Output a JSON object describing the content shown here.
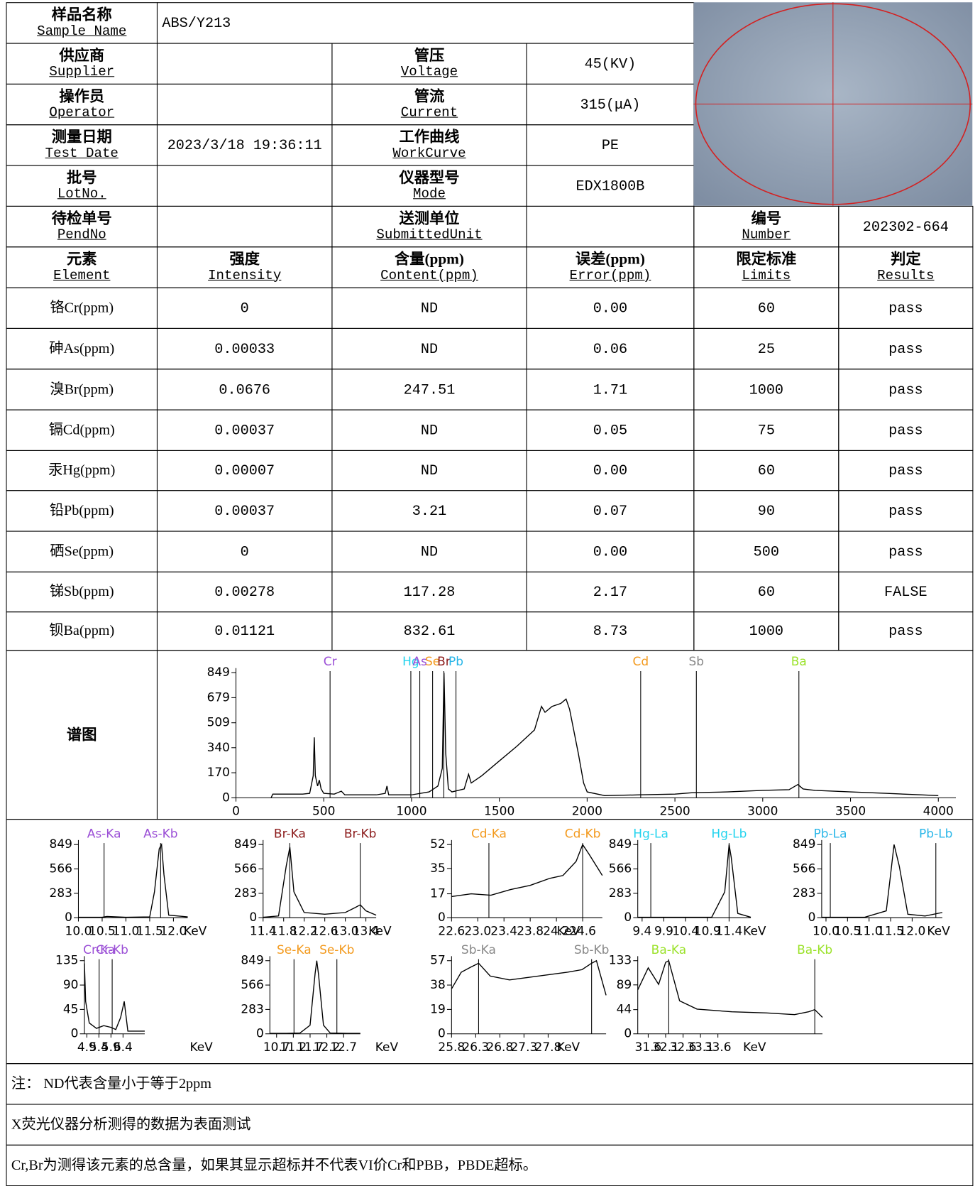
{
  "report": {
    "sample": {
      "cn": "样品名称",
      "en": "Sample Name",
      "value": "ABS/Y213"
    },
    "left_fields": [
      {
        "cn": "供应商",
        "en": "Supplier"
      },
      {
        "cn": "操作员",
        "en": "Operator"
      },
      {
        "cn": "测量日期",
        "en": "Test Date",
        "value": "2023/3/18 19:36:11"
      },
      {
        "cn": "批号",
        "en": "LotNo."
      },
      {
        "cn": "待检单号",
        "en": "PendNo"
      }
    ],
    "right_fields": [
      {
        "cn": "管压",
        "en": "Voltage",
        "value": "45(KV)"
      },
      {
        "cn": "管流",
        "en": "Current",
        "value": "315(μA)"
      },
      {
        "cn": "工作曲线",
        "en": "WorkCurve",
        "value": "PE"
      },
      {
        "cn": "仪器型号",
        "en": "Mode",
        "value": "EDX1800B"
      },
      {
        "cn": "送测单位",
        "en": "SubmittedUnit"
      }
    ],
    "number": {
      "cn": "编号",
      "en": "Number",
      "value": "202302-664"
    },
    "columns": [
      {
        "cn": "元素",
        "en": "Element"
      },
      {
        "cn": "强度",
        "en": "Intensity"
      },
      {
        "cn": "含量(ppm)",
        "en": "Content(ppm)"
      },
      {
        "cn": "误差(ppm)",
        "en": "Error(ppm)"
      },
      {
        "cn": "限定标准",
        "en": "Limits"
      },
      {
        "cn": "判定",
        "en": "Results"
      }
    ],
    "rows": [
      [
        "铬Cr(ppm)",
        0,
        "ND",
        "0.00",
        60,
        "pass"
      ],
      [
        "砷As(ppm)",
        0.00033,
        "ND",
        "0.06",
        25,
        "pass"
      ],
      [
        "溴Br(ppm)",
        0.0676,
        247.51,
        "1.71",
        1000,
        "pass"
      ],
      [
        "镉Cd(ppm)",
        0.00037,
        "ND",
        "0.05",
        75,
        "pass"
      ],
      [
        "汞Hg(ppm)",
        7e-05,
        "ND",
        "0.00",
        60,
        "pass"
      ],
      [
        "铅Pb(ppm)",
        0.00037,
        3.21,
        "0.07",
        90,
        "pass"
      ],
      [
        "硒Se(ppm)",
        0,
        "ND",
        "0.00",
        500,
        "pass"
      ],
      [
        "锑Sb(ppm)",
        0.00278,
        117.28,
        "2.17",
        60,
        "FALSE"
      ],
      [
        "钡Ba(ppm)",
        0.01121,
        832.61,
        "8.73",
        1000,
        "pass"
      ]
    ],
    "spectrum_label": "谱图",
    "notes": [
      "注： ND代表含量小于等于2ppm",
      "X荧光仪器分析测得的数据为表面测试",
      "Cr,Br为测得该元素的总含量，如果其显示超标并不代表VI价Cr和PBB，PBDE超标。"
    ]
  },
  "chart_data": [
    {
      "type": "line",
      "color": "#000000",
      "xlim": [
        0,
        4100
      ],
      "ylim": [
        0,
        849
      ],
      "xticks": [
        0,
        500,
        1000,
        1500,
        2000,
        2500,
        3000,
        3500,
        4000
      ],
      "yticks": [
        0,
        170,
        340,
        509,
        679,
        849
      ],
      "x": [
        200,
        210,
        380,
        420,
        440,
        446,
        452,
        465,
        475,
        485,
        500,
        560,
        600,
        620,
        800,
        850,
        860,
        870,
        1000,
        1100,
        1150,
        1175,
        1185,
        1195,
        1210,
        1230,
        1300,
        1325,
        1340,
        1400,
        1500,
        1600,
        1700,
        1740,
        1760,
        1800,
        1850,
        1880,
        1900,
        1950,
        1980,
        2000,
        2100,
        2300,
        2500,
        2600,
        2800,
        3000,
        3150,
        3200,
        3230,
        3300,
        3500,
        3700,
        3900,
        4000
      ],
      "values": [
        0,
        25,
        25,
        30,
        150,
        410,
        150,
        80,
        120,
        60,
        30,
        25,
        45,
        20,
        20,
        30,
        80,
        20,
        20,
        40,
        80,
        200,
        849,
        300,
        60,
        40,
        60,
        160,
        100,
        150,
        250,
        350,
        460,
        620,
        580,
        620,
        640,
        670,
        600,
        300,
        100,
        40,
        15,
        20,
        25,
        35,
        40,
        50,
        55,
        90,
        60,
        50,
        40,
        30,
        20,
        15
      ],
      "markers": [
        {
          "name": "Cr",
          "x": 536,
          "color": "#9b4fd6"
        },
        {
          "name": "Hg",
          "x": 996,
          "color": "#22d3ee"
        },
        {
          "name": "As",
          "x": 1047,
          "color": "#9b4fd6"
        },
        {
          "name": "Se",
          "x": 1120,
          "color": "#f39a1e"
        },
        {
          "name": "Br",
          "x": 1184,
          "color": "#8b1a1a"
        },
        {
          "name": "Pb",
          "x": 1253,
          "color": "#29b6e8"
        },
        {
          "name": "Cd",
          "x": 2305,
          "color": "#f39a1e"
        },
        {
          "name": "Sb",
          "x": 2622,
          "color": "#888888"
        },
        {
          "name": "Ba",
          "x": 3206,
          "color": "#9be22a"
        }
      ]
    },
    {
      "type": "line",
      "color": "#000000",
      "xlabel": "KeV",
      "xlim": [
        10,
        12.3
      ],
      "ylim": [
        0,
        849
      ],
      "yticks": [
        0,
        283,
        566,
        849
      ],
      "xticks": [
        {
          "value": 10,
          "label": "10.0"
        },
        10.5,
        {
          "value": 11,
          "label": "11.0"
        },
        11.5,
        {
          "value": 12,
          "label": "12.0"
        }
      ],
      "x": [
        10,
        10.5,
        10.6,
        11,
        11.5,
        11.6,
        11.7,
        11.75,
        11.8,
        11.9,
        12.3
      ],
      "values": [
        5,
        5,
        15,
        5,
        10,
        300,
        800,
        849,
        500,
        30,
        10
      ],
      "markers": [
        {
          "name": "As-Ka",
          "x": 10.54,
          "color": "#9b4fd6"
        },
        {
          "name": "As-Kb",
          "x": 11.73,
          "color": "#9b4fd6"
        }
      ]
    },
    {
      "type": "line",
      "color": "#000000",
      "xlabel": "KeV",
      "xlim": [
        11.4,
        13.6
      ],
      "ylim": [
        0,
        849
      ],
      "yticks": [
        0,
        283,
        566,
        849
      ],
      "xticks": [
        11.4,
        11.8,
        12.2,
        12.6,
        {
          "value": 13,
          "label": "13.0"
        },
        13.4
      ],
      "x": [
        11.4,
        11.7,
        11.85,
        11.92,
        12.0,
        12.2,
        12.6,
        13.0,
        13.2,
        13.29,
        13.4,
        13.6
      ],
      "values": [
        5,
        20,
        600,
        820,
        300,
        60,
        40,
        60,
        120,
        150,
        80,
        30
      ],
      "markers": [
        {
          "name": "Br-Ka",
          "x": 11.92,
          "color": "#8b1a1a"
        },
        {
          "name": "Br-Kb",
          "x": 13.29,
          "color": "#8b1a1a"
        }
      ]
    },
    {
      "type": "line",
      "color": "#000000",
      "xlabel": "KeV",
      "xlim": [
        22.6,
        24.9
      ],
      "ylim": [
        0,
        52
      ],
      "yticks": [
        0,
        17,
        35,
        52
      ],
      "xticks": [
        22.6,
        {
          "value": 23,
          "label": "23.0"
        },
        23.4,
        23.8,
        24.2,
        24.6
      ],
      "x": [
        22.6,
        22.9,
        23.2,
        23.5,
        23.8,
        24.1,
        24.3,
        24.5,
        24.6,
        24.7,
        24.9
      ],
      "values": [
        15,
        17,
        16,
        20,
        23,
        28,
        30,
        40,
        52,
        45,
        30
      ],
      "markers": [
        {
          "name": "Cd-Ka",
          "x": 23.17,
          "color": "#f39a1e"
        },
        {
          "name": "Cd-Kb",
          "x": 24.6,
          "color": "#f39a1e"
        }
      ]
    },
    {
      "type": "line",
      "color": "#000000",
      "xlabel": "KeV",
      "xlim": [
        9.3,
        11.9
      ],
      "ylim": [
        0,
        849
      ],
      "yticks": [
        0,
        283,
        566,
        849
      ],
      "xticks": [
        9.4,
        9.9,
        10.4,
        10.9,
        11.4
      ],
      "x": [
        9.3,
        9.6,
        10,
        10.5,
        11,
        11.3,
        11.4,
        11.45,
        11.6,
        11.9
      ],
      "values": [
        5,
        5,
        5,
        5,
        5,
        300,
        849,
        700,
        50,
        5
      ],
      "markers": [
        {
          "name": "Hg-La",
          "x": 9.6,
          "color": "#22d3ee"
        },
        {
          "name": "Hg-Lb",
          "x": 11.4,
          "color": "#22d3ee"
        }
      ]
    },
    {
      "type": "line",
      "color": "#000000",
      "xlabel": "KeV",
      "xlim": [
        9.9,
        12.7
      ],
      "ylim": [
        0,
        849
      ],
      "yticks": [
        0,
        283,
        566,
        849
      ],
      "xticks": [
        {
          "value": 10,
          "label": "10.0"
        },
        10.5,
        {
          "value": 11,
          "label": "11.0"
        },
        11.5,
        {
          "value": 12,
          "label": "12.0"
        }
      ],
      "x": [
        9.9,
        10.3,
        10.9,
        11.4,
        11.5,
        11.58,
        11.7,
        11.9,
        12.3,
        12.7
      ],
      "values": [
        5,
        5,
        5,
        80,
        500,
        849,
        600,
        40,
        20,
        60
      ],
      "markers": [
        {
          "name": "Pb-La",
          "x": 10.1,
          "color": "#29b6e8"
        },
        {
          "name": "Pb-Lb",
          "x": 12.55,
          "color": "#29b6e8"
        }
      ]
    },
    {
      "type": "line",
      "color": "#000000",
      "xlabel": "KeV",
      "xlim": [
        4.8,
        7.3
      ],
      "ylim": [
        0,
        135
      ],
      "yticks": [
        0,
        45,
        90,
        135
      ],
      "xticks": [
        4.9,
        5.4,
        5.9,
        6.4
      ],
      "x": [
        4.8,
        4.85,
        5.0,
        5.3,
        5.6,
        5.9,
        6.1,
        6.3,
        6.45,
        6.6,
        7.3
      ],
      "values": [
        130,
        60,
        20,
        10,
        15,
        12,
        8,
        30,
        60,
        5,
        5
      ],
      "markers": [
        {
          "name": "Cr-Ka",
          "x": 5.41,
          "color": "#9b4fd6"
        },
        {
          "name": "Cr-Kb",
          "x": 5.95,
          "color": "#9b4fd6"
        }
      ]
    },
    {
      "type": "line",
      "color": "#000000",
      "xlabel": "KeV",
      "xlim": [
        10.5,
        13.2
      ],
      "ylim": [
        0,
        849
      ],
      "yticks": [
        0,
        283,
        566,
        849
      ],
      "xticks": [
        10.7,
        11.2,
        11.7,
        12.2,
        12.7
      ],
      "x": [
        10.5,
        11.0,
        11.4,
        11.7,
        11.85,
        11.9,
        11.95,
        12.1,
        12.3,
        12.8,
        13.2
      ],
      "values": [
        5,
        5,
        10,
        100,
        700,
        849,
        700,
        100,
        10,
        5,
        5
      ],
      "markers": [
        {
          "name": "Se-Ka",
          "x": 11.22,
          "color": "#f39a1e"
        },
        {
          "name": "Se-Kb",
          "x": 12.5,
          "color": "#f39a1e"
        }
      ]
    },
    {
      "type": "line",
      "color": "#000000",
      "xlabel": "KeV",
      "xlim": [
        25.8,
        29.0
      ],
      "ylim": [
        0,
        57
      ],
      "yticks": [
        0,
        19,
        38,
        57
      ],
      "xticks": [
        25.8,
        26.3,
        26.8,
        27.3,
        27.8
      ],
      "x": [
        25.8,
        26.0,
        26.2,
        26.36,
        26.6,
        27.0,
        27.4,
        27.8,
        28.2,
        28.5,
        28.7,
        28.8,
        29.0
      ],
      "values": [
        35,
        48,
        52,
        55,
        45,
        42,
        44,
        46,
        48,
        50,
        55,
        57,
        30
      ],
      "markers": [
        {
          "name": "Sb-Ka",
          "x": 26.36,
          "color": "#888888"
        },
        {
          "name": "Sb-Kb",
          "x": 28.7,
          "color": "#888888"
        }
      ]
    },
    {
      "type": "line",
      "color": "#000000",
      "xlabel": "KeV",
      "xlim": [
        31.3,
        36.6
      ],
      "ylim": [
        0,
        133
      ],
      "yticks": [
        0,
        44,
        89,
        133
      ],
      "xticks": [
        31.6,
        32.1,
        32.6,
        33.1,
        33.6
      ],
      "x": [
        31.3,
        31.6,
        31.9,
        32.1,
        32.19,
        32.5,
        33.0,
        34,
        35,
        35.8,
        36.2,
        36.38,
        36.6
      ],
      "values": [
        80,
        120,
        90,
        130,
        133,
        60,
        45,
        40,
        38,
        35,
        40,
        44,
        30
      ],
      "markers": [
        {
          "name": "Ba-Ka",
          "x": 32.19,
          "color": "#9be22a"
        },
        {
          "name": "Ba-Kb",
          "x": 36.38,
          "color": "#9be22a"
        }
      ]
    }
  ]
}
